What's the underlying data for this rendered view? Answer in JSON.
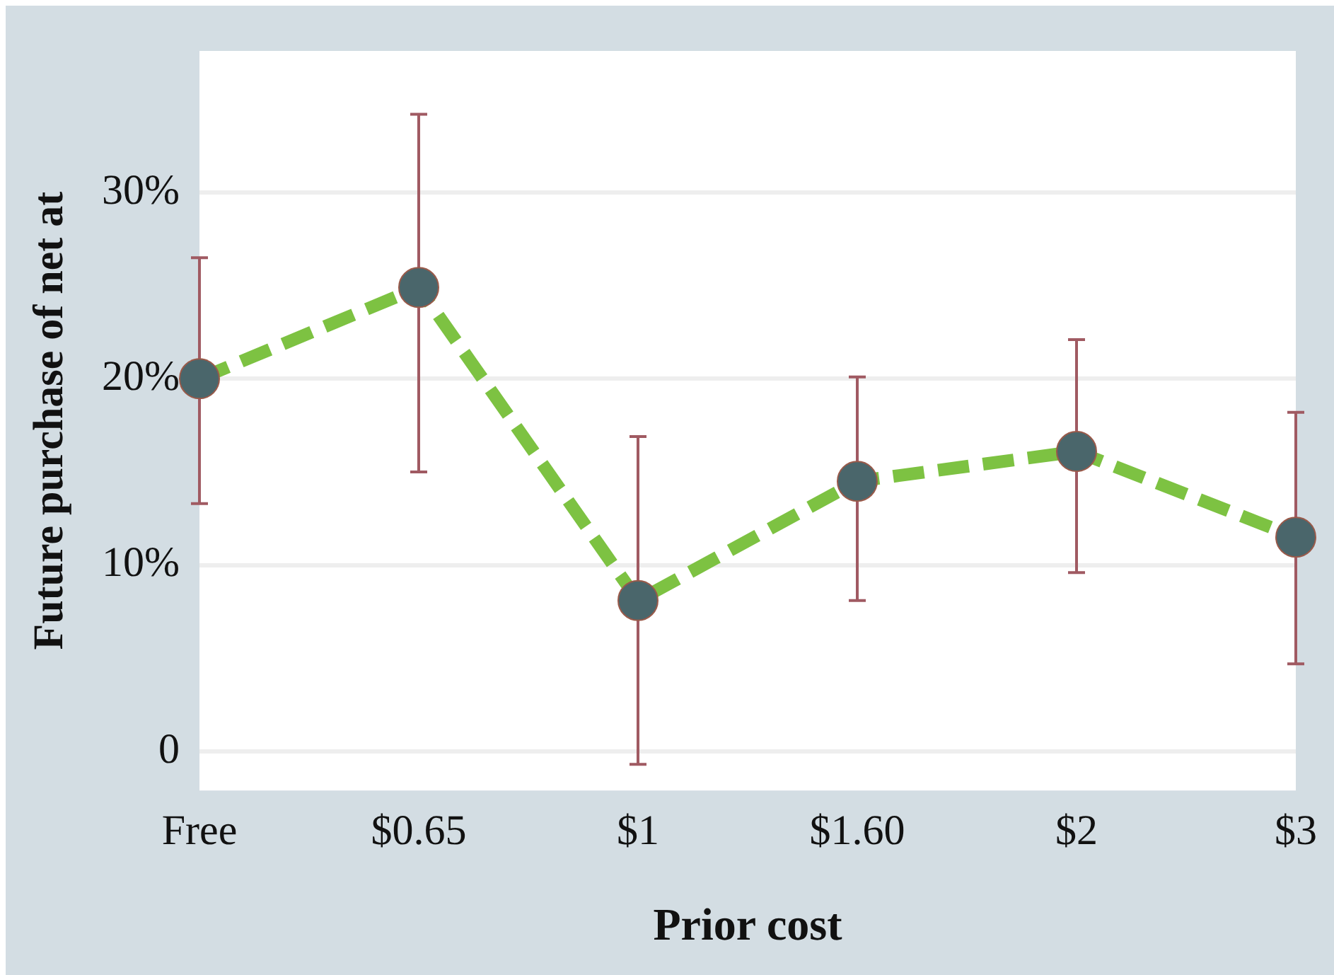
{
  "chart_data": {
    "type": "line",
    "xlabel": "Prior cost",
    "ylabel": "Future purchase of net at",
    "categories": [
      "Free",
      "$0.65",
      "$1",
      "$1.60",
      "$2",
      "$3"
    ],
    "series": [
      {
        "color": "#7dc242",
        "colors": [
          "#4a666b",
          "#4a666b",
          "#4a666b",
          "#4a666b",
          "#4a666b",
          "#4a666b"
        ],
        "values": [
          20,
          24.9,
          8.1,
          14.5,
          16.1,
          11.5
        ],
        "errors": [
          [
            13.3,
            26.5
          ],
          [
            15,
            34.2
          ],
          [
            -0.7,
            16.9
          ],
          [
            8.1,
            20.1
          ],
          [
            9.6,
            22.1
          ],
          [
            4.7,
            18.2
          ]
        ]
      }
    ],
    "ylim": [
      -2.1,
      37.6
    ],
    "yticks": [
      {
        "value": 0,
        "label": "0"
      },
      {
        "value": 10,
        "label": "10%"
      },
      {
        "value": 20,
        "label": "20%"
      },
      {
        "value": 30,
        "label": "30%"
      }
    ],
    "grid": "y",
    "marker": "circle",
    "line_style": "dashed"
  }
}
